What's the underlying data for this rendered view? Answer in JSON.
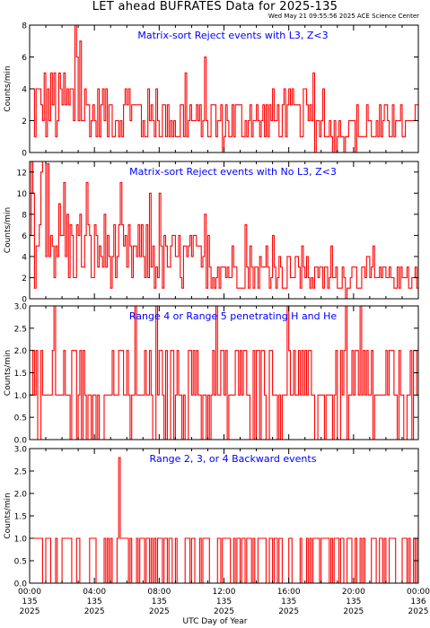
{
  "header": {
    "title": "LET ahead BUFRATES Data for 2025-135",
    "timestamp": "Wed May 21 09:55:56 2025 ACE Science Center"
  },
  "footer": {
    "xlabel": "UTC Day of Year"
  },
  "colors": {
    "data": "#ff0000",
    "annotation": "#0000ff",
    "axes": "#000000"
  },
  "x_axis": {
    "ticks": [
      {
        "time": "00:00",
        "doy": "135",
        "year": "2025"
      },
      {
        "time": "04:00",
        "doy": "135",
        "year": "2025"
      },
      {
        "time": "08:00",
        "doy": "135",
        "year": "2025"
      },
      {
        "time": "12:00",
        "doy": "135",
        "year": "2025"
      },
      {
        "time": "16:00",
        "doy": "135",
        "year": "2025"
      },
      {
        "time": "20:00",
        "doy": "135",
        "year": "2025"
      },
      {
        "time": "00:00",
        "doy": "136",
        "year": "2025"
      }
    ]
  },
  "chart_data": [
    {
      "type": "line",
      "annotation": "Matrix-sort Reject events with L3, Z<3",
      "ylabel": "Counts/min",
      "ylim": [
        0,
        8
      ],
      "yticks": [
        "0",
        "2",
        "4",
        "6",
        "8"
      ],
      "x_unit": "hours since 00:00 UTC day 135",
      "x": [
        0,
        0.5,
        1,
        1.5,
        2,
        2.5,
        3,
        3.5,
        4,
        4.5,
        5,
        5.5,
        6,
        6.5,
        7,
        7.5,
        8,
        8.5,
        9,
        9.5,
        10,
        10.5,
        11,
        11.5,
        12,
        12.5,
        13,
        13.5,
        14,
        14.5,
        15,
        15.5,
        16,
        16.5,
        17,
        17.5,
        18,
        18.5,
        19,
        19.5,
        20,
        20.5,
        21,
        21.5,
        22,
        22.5,
        23,
        23.5,
        24
      ],
      "values": [
        3,
        3,
        3,
        3,
        3,
        3,
        3,
        2.5,
        2.5,
        2.5,
        2.5,
        2.5,
        2.5,
        2.5,
        2,
        2,
        2,
        2,
        2,
        2,
        2,
        2,
        2,
        2,
        2,
        2,
        2,
        2,
        2,
        2,
        2,
        2,
        2,
        2,
        2,
        2,
        1.5,
        1.5,
        1.5,
        1.5,
        1.5,
        1.5,
        1.5,
        1.5,
        1.5,
        1.5,
        1.5,
        1.5,
        1.5
      ],
      "peak": {
        "x": 2.8,
        "value": 8
      }
    },
    {
      "type": "line",
      "annotation": "Matrix-sort Reject events with No L3, Z<3",
      "ylabel": "Counts/min",
      "ylim": [
        0,
        13
      ],
      "yticks": [
        "0",
        "2",
        "4",
        "6",
        "8",
        "10",
        "12"
      ],
      "x_unit": "hours since 00:00 UTC day 135",
      "x": [
        0,
        0.5,
        1,
        1.5,
        2,
        2.5,
        3,
        3.5,
        4,
        4.5,
        5,
        5.5,
        6,
        6.5,
        7,
        7.5,
        8,
        8.5,
        9,
        9.5,
        10,
        10.5,
        11,
        11.5,
        12,
        12.5,
        13,
        13.5,
        14,
        14.5,
        15,
        15.5,
        16,
        16.5,
        17,
        17.5,
        18,
        18.5,
        19,
        19.5,
        20,
        20.5,
        21,
        21.5,
        22,
        22.5,
        23,
        23.5,
        24
      ],
      "values": [
        6,
        6,
        5.5,
        5.5,
        5,
        5,
        5,
        4.5,
        4.5,
        4.5,
        4.5,
        4,
        4,
        4,
        4,
        4,
        3.5,
        3.5,
        3.5,
        3.5,
        3.5,
        3,
        3,
        3,
        3,
        3,
        3,
        3,
        2.5,
        2.5,
        2.5,
        2.5,
        2.5,
        2.5,
        2.5,
        2,
        2,
        2,
        2,
        2,
        2,
        2,
        2,
        2,
        2,
        2,
        2,
        2,
        2
      ],
      "peak": {
        "x": 1.1,
        "value": 12.8
      }
    },
    {
      "type": "line",
      "annotation": "Range 4 or Range 5 penetrating H and He",
      "ylabel": "Counts/min",
      "ylim": [
        0,
        3
      ],
      "yticks": [
        "0.0",
        "0.5",
        "1.0",
        "1.5",
        "2.0",
        "2.5",
        "3.0"
      ],
      "x_unit": "hours since 00:00 UTC day 135",
      "x": [
        0,
        0.5,
        1,
        1.5,
        2,
        2.5,
        3,
        3.5,
        4,
        4.5,
        5,
        5.5,
        6,
        6.5,
        7,
        7.5,
        8,
        8.5,
        9,
        9.5,
        10,
        10.5,
        11,
        11.5,
        12,
        12.5,
        13,
        13.5,
        14,
        14.5,
        15,
        15.5,
        16,
        16.5,
        17,
        17.5,
        18,
        18.5,
        19,
        19.5,
        20,
        20.5,
        21,
        21.5,
        22,
        22.5,
        23,
        23.5,
        24
      ],
      "values": [
        1,
        1,
        1,
        1,
        1,
        1,
        1,
        1,
        1,
        1,
        1,
        1,
        1,
        1,
        1,
        1,
        1,
        1,
        1,
        1,
        1,
        1,
        1,
        1,
        1,
        1,
        1,
        1,
        1,
        1,
        1,
        1,
        1,
        1,
        1,
        1,
        1,
        1,
        1,
        1,
        1,
        1,
        1,
        1,
        1,
        1,
        1,
        1,
        1
      ],
      "peak": {
        "x": 1.5,
        "value": 3
      }
    },
    {
      "type": "line",
      "annotation": "Range 2, 3, or 4 Backward events",
      "ylabel": "Counts/min",
      "ylim": [
        0,
        3
      ],
      "yticks": [
        "0.0",
        "0.5",
        "1.0",
        "1.5",
        "2.0",
        "2.5",
        "3.0"
      ],
      "x_unit": "hours since 00:00 UTC day 135",
      "x": [
        0,
        0.5,
        1,
        1.5,
        2,
        2.5,
        3,
        3.5,
        4,
        4.5,
        5,
        5.5,
        6,
        6.5,
        7,
        7.5,
        8,
        8.5,
        9,
        9.5,
        10,
        10.5,
        11,
        11.5,
        12,
        12.5,
        13,
        13.5,
        14,
        14.5,
        15,
        15.5,
        16,
        16.5,
        17,
        17.5,
        18,
        18.5,
        19,
        19.5,
        20,
        20.5,
        21,
        21.5,
        22,
        22.5,
        23,
        23.5,
        24
      ],
      "values": [
        0.5,
        0.5,
        0.5,
        0.5,
        0.5,
        0.5,
        0.5,
        0.5,
        0.5,
        0.5,
        0.5,
        0.5,
        0.5,
        0.5,
        0.5,
        0.5,
        0.5,
        0.5,
        0.5,
        0.5,
        0.5,
        0.5,
        0.5,
        0.5,
        0.5,
        0.5,
        0.5,
        0.5,
        0.5,
        0.5,
        0.5,
        0.5,
        0.5,
        0.5,
        0.5,
        0.5,
        0.5,
        0.5,
        0.5,
        0.5,
        0.5,
        0.5,
        0.5,
        0.5,
        0.5,
        0.5,
        0.5,
        0.5,
        0.5
      ],
      "peak": {
        "x": 5.5,
        "value": 2.8
      }
    }
  ]
}
